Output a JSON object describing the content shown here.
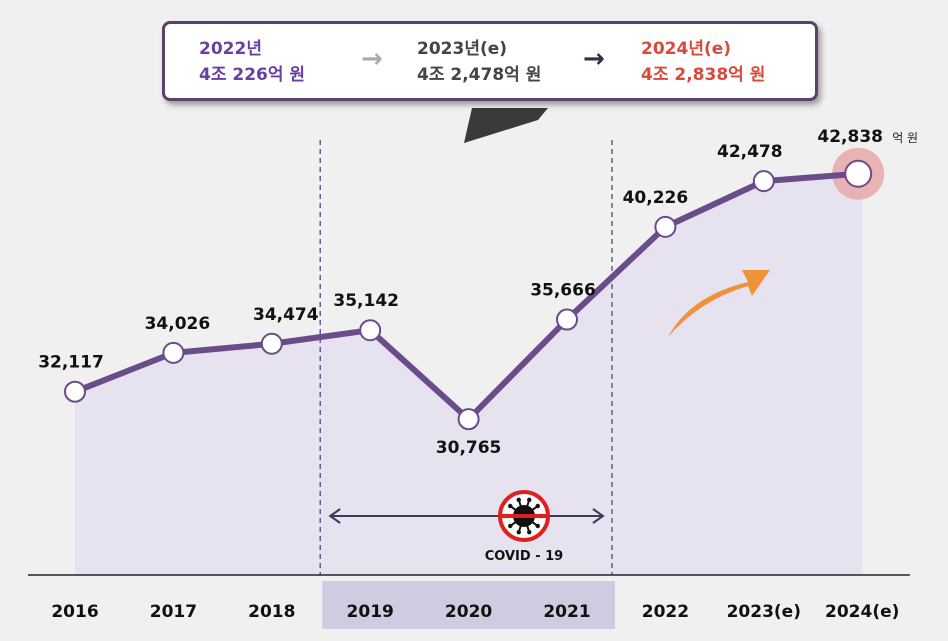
{
  "colors": {
    "line": "#6a4c8a",
    "fill": "#e6e0ee",
    "covid_band": "#cfcbe0",
    "text_2022": "#6b3fa0",
    "text_2023": "#444444",
    "text_2024": "#d94a3c",
    "arrow_gray": "#aaaaaa",
    "arrow_dark": "#2f3045",
    "highlight": "#e8a8a8",
    "orange": "#f0923a"
  },
  "callout": {
    "y2022": {
      "year": "2022년",
      "amount": "4조 226억 원"
    },
    "y2023": {
      "year": "2023년(e)",
      "amount": "4조 2,478억 원"
    },
    "y2024": {
      "year": "2024년(e)",
      "amount": "4조 2,838억 원"
    },
    "arrow_icon": "right-arrow-icon"
  },
  "chart_data": {
    "type": "line",
    "categories": [
      "2016",
      "2017",
      "2018",
      "2019",
      "2020",
      "2021",
      "2022",
      "2023(e)",
      "2024(e)"
    ],
    "values": [
      32117,
      34026,
      34474,
      35142,
      30765,
      35666,
      40226,
      42478,
      42838
    ],
    "value_labels": [
      "32,117",
      "34,026",
      "34,474",
      "35,142",
      "30,765",
      "35,666",
      "40,226",
      "42,478",
      "42,838"
    ],
    "unit": "억 원",
    "ylim": [
      23000,
      44500
    ],
    "annotation": "COVID - 19",
    "annotation_range": [
      "2019",
      "2021"
    ],
    "highlight_category": "2024(e)"
  }
}
